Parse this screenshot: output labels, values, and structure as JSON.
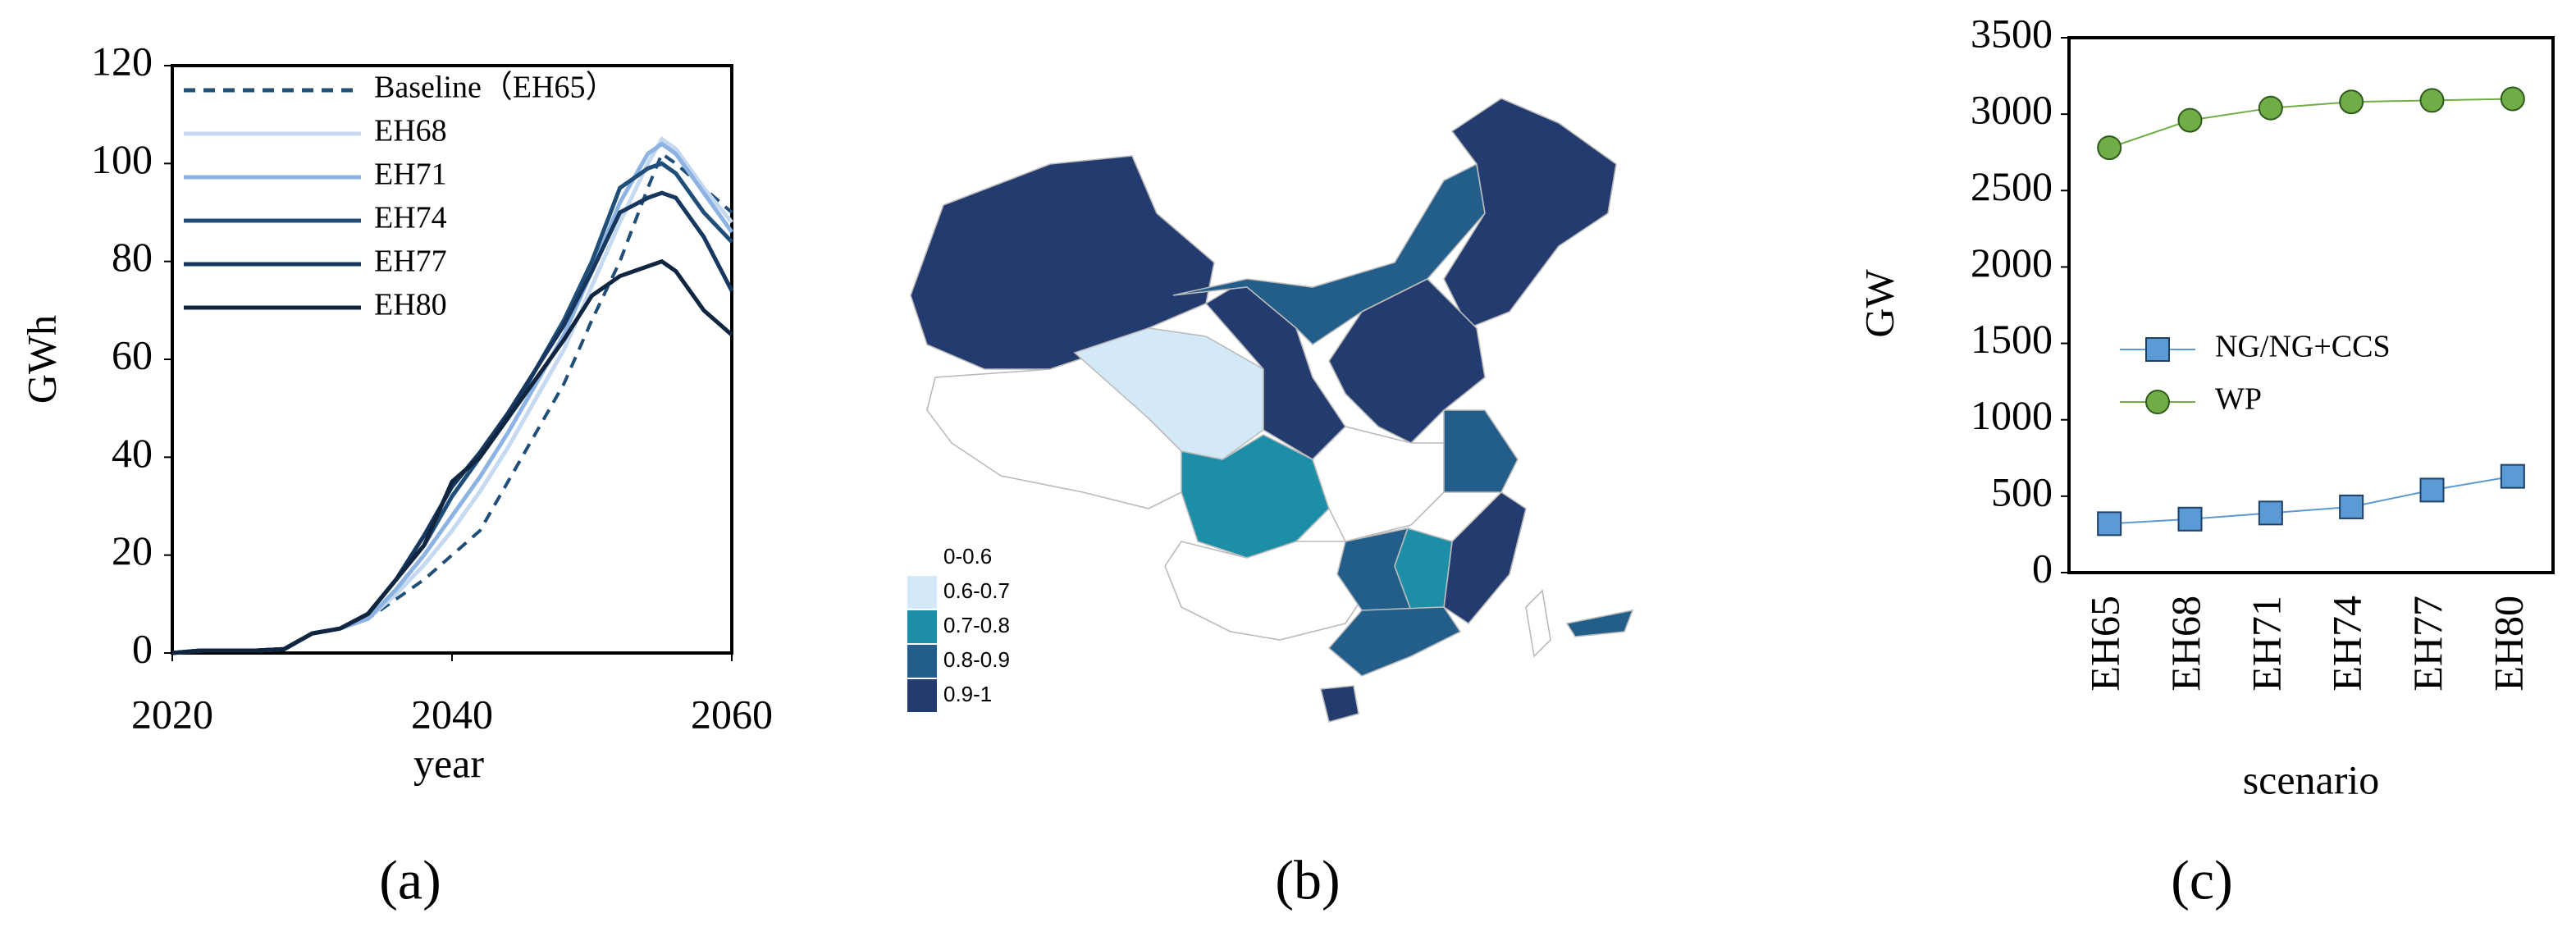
{
  "chart_data": [
    {
      "type": "line",
      "panel_label": "(a)",
      "xlabel": "year",
      "ylabel": "GWh",
      "x": [
        2020,
        2022,
        2024,
        2026,
        2028,
        2030,
        2032,
        2034,
        2036,
        2038,
        2040,
        2042,
        2044,
        2046,
        2048,
        2050,
        2052,
        2054,
        2055,
        2056,
        2058,
        2060
      ],
      "xlim": [
        2020,
        2060
      ],
      "xticks": [
        2020,
        2040,
        2060
      ],
      "ylim": [
        0,
        120
      ],
      "yticks": [
        0,
        20,
        40,
        60,
        80,
        100,
        120
      ],
      "series": [
        {
          "name": "Baseline（EH65）",
          "color": "#1f4e79",
          "dashed": true,
          "values": [
            0,
            0.5,
            0.5,
            0.5,
            0.8,
            4,
            5,
            7,
            11,
            15,
            20,
            25,
            35,
            45,
            55,
            68,
            80,
            95,
            102,
            100,
            95,
            90
          ]
        },
        {
          "name": "EH68",
          "color": "#c5d9f1",
          "values": [
            0,
            0.5,
            0.5,
            0.5,
            0.8,
            4,
            5,
            7,
            12,
            18,
            25,
            33,
            42,
            52,
            62,
            75,
            88,
            100,
            105,
            103,
            95,
            88
          ]
        },
        {
          "name": "EH71",
          "color": "#8db3e2",
          "values": [
            0,
            0.5,
            0.5,
            0.5,
            0.8,
            4,
            5,
            7,
            13,
            20,
            28,
            36,
            45,
            55,
            65,
            78,
            92,
            102,
            104,
            102,
            94,
            86
          ]
        },
        {
          "name": "EH74",
          "color": "#1f4e79",
          "values": [
            0,
            0.5,
            0.5,
            0.5,
            0.8,
            4,
            5,
            8,
            15,
            22,
            32,
            40,
            48,
            58,
            68,
            80,
            95,
            99,
            100,
            98,
            90,
            84
          ]
        },
        {
          "name": "EH77",
          "color": "#17375e",
          "values": [
            0,
            0.5,
            0.5,
            0.5,
            0.8,
            4,
            5,
            8,
            15,
            24,
            34,
            41,
            49,
            58,
            67,
            78,
            90,
            93,
            94,
            93,
            85,
            74
          ]
        },
        {
          "name": "EH80",
          "color": "#0f2540",
          "values": [
            0,
            0.5,
            0.5,
            0.5,
            0.8,
            4,
            5,
            8,
            15,
            22,
            35,
            40,
            48,
            56,
            64,
            73,
            77,
            79,
            80,
            78,
            70,
            65
          ]
        }
      ]
    },
    {
      "type": "map",
      "panel_label": "(b)",
      "legend": {
        "labels": [
          "0-0.6",
          "0.6-0.7",
          "0.7-0.8",
          "0.8-0.9",
          "0.9-1"
        ],
        "colors": [
          "#ffffff",
          "#d4e9f7",
          "#1c8ea8",
          "#235e8a",
          "#233b6e"
        ]
      }
    },
    {
      "type": "line",
      "panel_label": "(c)",
      "xlabel": "scenario",
      "ylabel": "GW",
      "categories": [
        "EH65",
        "EH68",
        "EH71",
        "EH74",
        "EH77",
        "EH80"
      ],
      "ylim": [
        0,
        3500
      ],
      "yticks": [
        0,
        500,
        1000,
        1500,
        2000,
        2500,
        3000,
        3500
      ],
      "series": [
        {
          "name": "NG/NG+CCS",
          "color": "#5b9bd5",
          "marker": "square",
          "values": [
            320,
            350,
            390,
            430,
            540,
            630
          ]
        },
        {
          "name": "WP",
          "color": "#70ad47",
          "marker": "circle",
          "values": [
            2780,
            2960,
            3040,
            3080,
            3090,
            3100
          ]
        }
      ]
    }
  ]
}
